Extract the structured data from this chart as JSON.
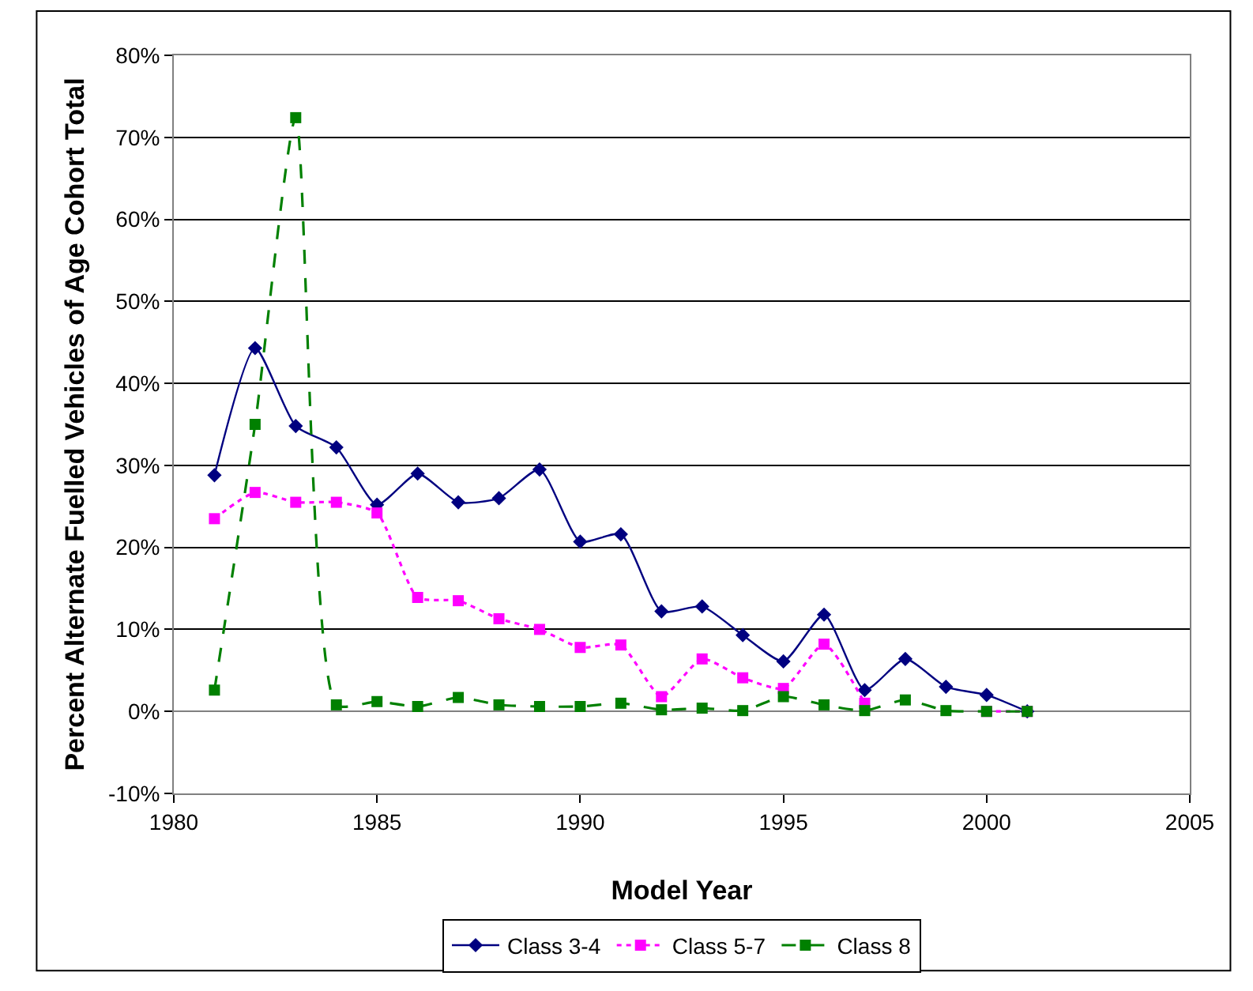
{
  "chart_data": {
    "type": "line",
    "xlabel": "Model Year",
    "ylabel": "Percent Alternate Fuelled Vehicles of Age Cohort Total",
    "x": [
      1981,
      1982,
      1983,
      1984,
      1985,
      1986,
      1987,
      1988,
      1989,
      1990,
      1991,
      1992,
      1993,
      1994,
      1995,
      1996,
      1997,
      1998,
      1999,
      2000,
      2001
    ],
    "series": [
      {
        "name": "Class 3-4",
        "color": "#000080",
        "marker": "diamond",
        "line_style": "solid",
        "values": [
          28.8,
          44.3,
          34.8,
          32.2,
          25.2,
          29.0,
          25.5,
          26.0,
          29.5,
          20.7,
          21.6,
          12.2,
          12.8,
          9.3,
          6.1,
          11.8,
          2.6,
          6.4,
          3.0,
          2.0,
          0
        ]
      },
      {
        "name": "Class 5-7",
        "color": "#ff00ff",
        "marker": "square",
        "line_style": "dotted",
        "values": [
          23.5,
          26.7,
          25.5,
          25.5,
          24.2,
          13.9,
          13.5,
          11.3,
          10.0,
          7.8,
          8.1,
          1.8,
          6.4,
          4.1,
          2.8,
          8.2,
          1.0,
          null,
          null,
          0,
          0
        ]
      },
      {
        "name": "Class 8",
        "color": "#008000",
        "marker": "square",
        "line_style": "dashed",
        "values": [
          2.6,
          35.0,
          72.4,
          0.8,
          1.2,
          0.6,
          1.7,
          0.8,
          0.6,
          0.6,
          1.0,
          0.2,
          0.4,
          0.1,
          1.8,
          0.8,
          0.1,
          1.4,
          0.1,
          0,
          0
        ]
      }
    ],
    "xlim": [
      1980,
      2005
    ],
    "xticks": [
      1980,
      1985,
      1990,
      1995,
      2000,
      2005
    ],
    "ylim": [
      -10,
      80
    ],
    "yticks": [
      {
        "value": -10,
        "label": "-10%"
      },
      {
        "value": 0,
        "label": "0%"
      },
      {
        "value": 10,
        "label": "10%"
      },
      {
        "value": 20,
        "label": "20%"
      },
      {
        "value": 30,
        "label": "30%"
      },
      {
        "value": 40,
        "label": "40%"
      },
      {
        "value": 50,
        "label": "50%"
      },
      {
        "value": 60,
        "label": "60%"
      },
      {
        "value": 70,
        "label": "70%"
      },
      {
        "value": 80,
        "label": "80%"
      }
    ],
    "grid": "y",
    "legend": "bottom"
  }
}
